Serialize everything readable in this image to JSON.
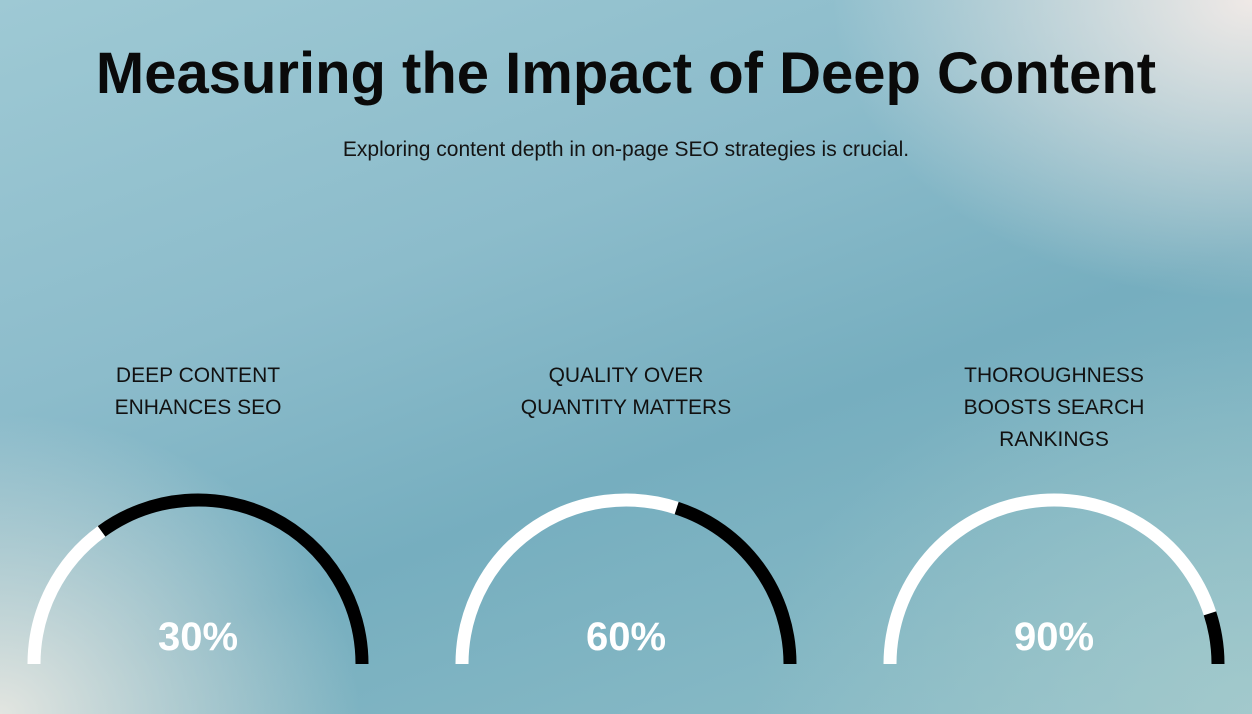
{
  "header": {
    "title": "Measuring the Impact of Deep Content",
    "subtitle": "Exploring content depth in on-page SEO strategies is crucial."
  },
  "gauges": [
    {
      "label": "DEEP CONTENT\nENHANCES SEO",
      "value": 30,
      "value_label": "30%"
    },
    {
      "label": "QUALITY OVER\nQUANTITY MATTERS",
      "value": 60,
      "value_label": "60%"
    },
    {
      "label": "THOROUGHNESS\nBOOSTS SEARCH\nRANKINGS",
      "value": 90,
      "value_label": "90%"
    }
  ],
  "colors": {
    "filled": "#ffffff",
    "remaining": "#000000"
  },
  "chart_data": {
    "type": "gauge",
    "title": "Measuring the Impact of Deep Content",
    "subtitle": "Exploring content depth in on-page SEO strategies is crucial.",
    "categories": [
      "DEEP CONTENT ENHANCES SEO",
      "QUALITY OVER QUANTITY MATTERS",
      "THOROUGHNESS BOOSTS SEARCH RANKINGS"
    ],
    "values": [
      30,
      60,
      90
    ],
    "value_labels": [
      "30%",
      "60%",
      "90%"
    ],
    "range": [
      0,
      100
    ],
    "filled_color": "#ffffff",
    "remaining_color": "#000000"
  }
}
